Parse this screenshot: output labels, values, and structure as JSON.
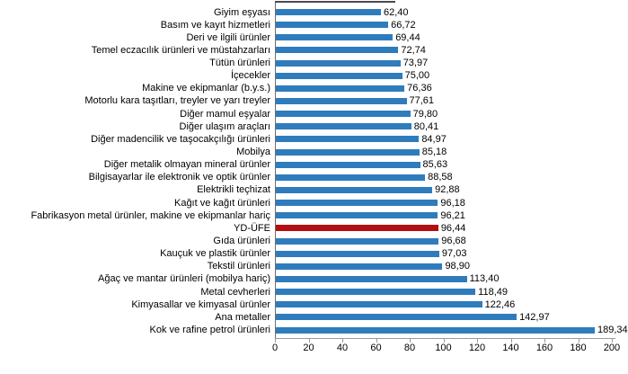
{
  "chart_data": {
    "type": "bar",
    "orientation": "horizontal",
    "title": "",
    "xlabel": "",
    "ylabel": "",
    "xlim": [
      0,
      200
    ],
    "x_ticks": [
      0,
      20,
      40,
      60,
      80,
      100,
      120,
      140,
      160,
      180,
      200
    ],
    "grid": false,
    "legend": "none",
    "background_color": "#ffffff",
    "bar_color": "#2F7CBD",
    "highlight_color": "#B30F12",
    "highlight_category": "YD-ÜFE",
    "decimal_style": "comma",
    "categories": [
      "Giyim eşyası",
      "Basım ve kayıt hizmetleri",
      "Deri ve ilgili ürünler",
      "Temel eczacılık ürünleri ve müstahzarları",
      "Tütün ürünleri",
      "İçecekler",
      "Makine ve ekipmanlar (b.y.s.)",
      "Motorlu kara taşıtları, treyler ve yarı treyler",
      "Diğer mamul eşyalar",
      "Diğer ulaşım araçları",
      "Diğer madencilik ve taşocakçılığı ürünleri",
      "Mobilya",
      "Diğer metalik olmayan mineral ürünler",
      "Bilgisayarlar ile elektronik ve optik ürünler",
      "Elektrikli teçhizat",
      "Kağıt ve kağıt ürünleri",
      "Fabrikasyon metal ürünler, makine ve ekipmanlar hariç",
      "YD-ÜFE",
      "Gıda ürünleri",
      "Kauçuk ve plastik ürünler",
      "Tekstil ürünleri",
      "Ağaç ve mantar ürünleri (mobilya hariç)",
      "Metal cevherleri",
      "Kimyasallar ve kimyasal ürünler",
      "Ana metaller",
      "Kok ve rafine petrol ürünleri"
    ],
    "values": [
      62.4,
      66.72,
      69.44,
      72.74,
      73.97,
      75.0,
      76.36,
      77.61,
      79.8,
      80.41,
      84.97,
      85.18,
      85.63,
      88.58,
      92.88,
      96.18,
      96.21,
      96.44,
      96.68,
      97.03,
      98.9,
      113.4,
      118.49,
      122.46,
      142.97,
      189.34
    ],
    "value_labels": [
      "62,40",
      "66,72",
      "69,44",
      "72,74",
      "73,97",
      "75,00",
      "76,36",
      "77,61",
      "79,80",
      "80,41",
      "84,97",
      "85,18",
      "85,63",
      "88,58",
      "92,88",
      "96,18",
      "96,21",
      "96,44",
      "96,68",
      "97,03",
      "98,90",
      "113,40",
      "118,49",
      "122,46",
      "142,97",
      "189,34"
    ]
  }
}
